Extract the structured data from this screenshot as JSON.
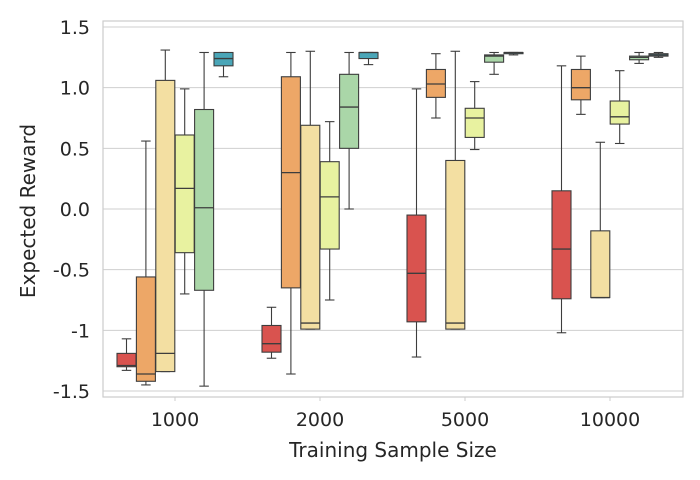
{
  "chart_data": {
    "type": "box",
    "title": "",
    "xlabel": "Training Sample Size",
    "ylabel": "Expected Reward",
    "ylim": [
      -1.55,
      1.55
    ],
    "yticks": [
      1.5,
      1.0,
      0.5,
      0.0,
      -0.5,
      -1,
      -1.5
    ],
    "ytick_labels": [
      "1.5",
      "1.0",
      "0.5",
      "0.0",
      "-0.5",
      "-1",
      "-1.5"
    ],
    "categories": [
      "1000",
      "2000",
      "5000",
      "10000"
    ],
    "grid": "horizontal",
    "series_colors": [
      "#d9534f",
      "#eda767",
      "#f3dfa2",
      "#e8f2a0",
      "#aad6a8",
      "#4aa6b8"
    ],
    "boxes": [
      [
        {
          "min": -1.33,
          "q1": -1.3,
          "median": -1.29,
          "q3": -1.19,
          "max": -1.07
        },
        {
          "min": -1.45,
          "q1": -1.42,
          "median": -1.36,
          "q3": -0.56,
          "max": 0.56
        },
        {
          "min": -1.34,
          "q1": -1.34,
          "median": -1.19,
          "q3": 1.06,
          "max": 1.31
        },
        {
          "min": -0.7,
          "q1": -0.36,
          "median": 0.17,
          "q3": 0.61,
          "max": 0.99
        },
        {
          "min": -1.46,
          "q1": -0.67,
          "median": 0.01,
          "q3": 0.82,
          "max": 1.29
        },
        {
          "min": 1.09,
          "q1": 1.18,
          "median": 1.24,
          "q3": 1.29,
          "max": 1.29
        }
      ],
      [
        {
          "min": -1.23,
          "q1": -1.18,
          "median": -1.11,
          "q3": -0.96,
          "max": -0.81
        },
        {
          "min": -1.36,
          "q1": -0.65,
          "median": 0.3,
          "q3": 1.09,
          "max": 1.29
        },
        {
          "min": -0.99,
          "q1": -0.99,
          "median": -0.94,
          "q3": 0.69,
          "max": 1.3
        },
        {
          "min": -0.75,
          "q1": -0.33,
          "median": 0.1,
          "q3": 0.39,
          "max": 0.72
        },
        {
          "min": 0.0,
          "q1": 0.5,
          "median": 0.84,
          "q3": 1.11,
          "max": 1.29
        },
        {
          "min": 1.19,
          "q1": 1.24,
          "median": 1.29,
          "q3": 1.29,
          "max": 1.29
        }
      ],
      [
        {
          "min": -1.22,
          "q1": -0.93,
          "median": -0.53,
          "q3": -0.05,
          "max": 0.99
        },
        {
          "min": 0.75,
          "q1": 0.92,
          "median": 1.03,
          "q3": 1.15,
          "max": 1.28
        },
        {
          "min": -0.99,
          "q1": -0.99,
          "median": -0.94,
          "q3": 0.4,
          "max": 1.3
        },
        {
          "min": 0.49,
          "q1": 0.59,
          "median": 0.75,
          "q3": 0.83,
          "max": 1.05
        },
        {
          "min": 1.11,
          "q1": 1.21,
          "median": 1.26,
          "q3": 1.27,
          "max": 1.29
        },
        {
          "min": 1.27,
          "q1": 1.28,
          "median": 1.29,
          "q3": 1.29,
          "max": 1.29
        }
      ],
      [
        {
          "min": -1.02,
          "q1": -0.74,
          "median": -0.33,
          "q3": 0.15,
          "max": 1.18
        },
        {
          "min": 0.78,
          "q1": 0.9,
          "median": 1.0,
          "q3": 1.15,
          "max": 1.26
        },
        {
          "min": -0.73,
          "q1": -0.73,
          "median": -0.73,
          "q3": -0.18,
          "max": 0.55
        },
        {
          "min": 0.54,
          "q1": 0.7,
          "median": 0.76,
          "q3": 0.89,
          "max": 1.14
        },
        {
          "min": 1.2,
          "q1": 1.23,
          "median": 1.25,
          "q3": 1.26,
          "max": 1.29
        },
        {
          "min": 1.25,
          "q1": 1.26,
          "median": 1.27,
          "q3": 1.28,
          "max": 1.29
        }
      ]
    ]
  }
}
